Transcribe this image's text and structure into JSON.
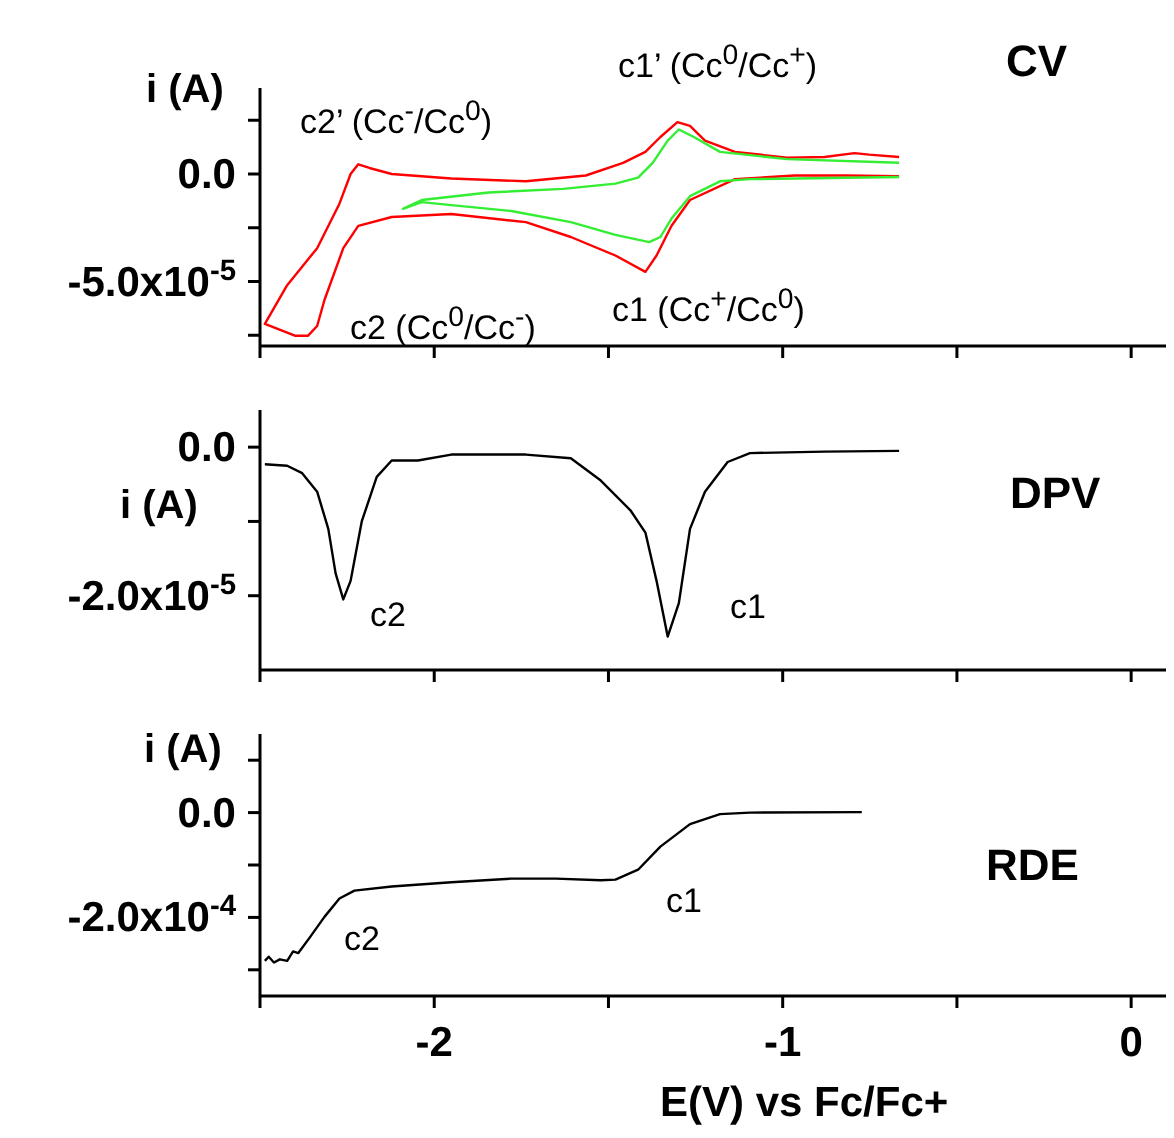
{
  "chart_data": [
    {
      "type": "line",
      "title": "CV",
      "ylabel": "i (A)",
      "tick_labels": "y",
      "annotations": [
        "c2’ (Cc$^{-}$/Cc$^{0}$)",
        "c1’ (Cc$^{0}$/Cc$^{+}$)",
        "c2 (Cc$^{0}$/Cc$^{-}$)",
        "c1 (Cc$^{+}$/Cc$^{0}$)"
      ],
      "xlim": [
        -2.5,
        0.1
      ],
      "xticks": [
        {
          "value": -2.5,
          "label": null
        },
        {
          "value": -2,
          "label": null
        },
        {
          "value": -1.5,
          "label": null
        },
        {
          "value": -1,
          "label": null
        },
        {
          "value": -0.5,
          "label": null
        },
        {
          "value": 0,
          "label": null
        }
      ],
      "ylim": [
        -8e-05,
        4e-05
      ],
      "yticks": [
        {
          "value": 2.5e-05,
          "label": null
        },
        {
          "value": 0,
          "label": "0.0"
        },
        {
          "value": -2.5e-05,
          "label": null
        },
        {
          "value": -5e-05,
          "label": "-5.0x10$^{-5}$"
        },
        {
          "value": -7.5e-05,
          "label": null
        }
      ],
      "series": [
        {
          "color": "#ff0000",
          "x": [
            -0.666,
            -0.816,
            -0.966,
            -1.137,
            -1.266,
            -1.319,
            -1.362,
            -1.394,
            -1.48,
            -1.608,
            -1.737,
            -1.951,
            -2.122,
            -2.218,
            -2.261,
            -2.315,
            -2.336,
            -2.362,
            -2.4,
            -2.486,
            -2.422,
            -2.336,
            -2.272,
            -2.24,
            -2.218,
            -2.186,
            -2.122,
            -1.951,
            -1.737,
            -1.565,
            -1.458,
            -1.394,
            -1.351,
            -1.302,
            -1.266,
            -1.223,
            -1.137,
            -0.987,
            -0.88,
            -0.794,
            -0.752,
            -0.666
          ],
          "values": [
            -1e-06,
            -7e-07,
            -7e-07,
            -2.4e-06,
            -1.21e-05,
            -2.41e-05,
            -3.79e-05,
            -4.55e-05,
            -3.79e-05,
            -2.93e-05,
            -2.24e-05,
            -1.86e-05,
            -2e-05,
            -2.41e-05,
            -3.45e-05,
            -5.86e-05,
            -7.07e-05,
            -7.52e-05,
            -7.52e-05,
            -6.97e-05,
            -5.17e-05,
            -3.45e-05,
            -1.38e-05,
            0,
            4.5e-06,
            2.8e-06,
            0,
            -2.1e-06,
            -3.4e-06,
            -7e-07,
            5.2e-06,
            1.03e-05,
            1.72e-05,
            2.41e-05,
            2.24e-05,
            1.55e-05,
            1.03e-05,
            7.6e-06,
            7.9e-06,
            9.7e-06,
            9e-06,
            7.9e-06
          ]
        },
        {
          "color": "#33ee33",
          "x": [
            -0.666,
            -1.094,
            -1.18,
            -1.266,
            -1.319,
            -1.351,
            -1.383,
            -1.48,
            -1.608,
            -1.779,
            -1.951,
            -2.036,
            -2.09,
            -2.036,
            -1.844,
            -1.63,
            -1.48,
            -1.415,
            -1.373,
            -1.33,
            -1.298,
            -1.255,
            -1.18,
            -0.987,
            -0.666
          ],
          "values": [
            -1.4e-06,
            -2.4e-06,
            -3.4e-06,
            -1.03e-05,
            -2.07e-05,
            -2.93e-05,
            -3.17e-05,
            -2.83e-05,
            -2.24e-05,
            -1.72e-05,
            -1.45e-05,
            -1.31e-05,
            -1.62e-05,
            -1.21e-05,
            -8.6e-06,
            -6.9e-06,
            -4.5e-06,
            -1.7e-06,
            5.2e-06,
            1.55e-05,
            2.07e-05,
            1.72e-05,
            1.03e-05,
            6.9e-06,
            5.2e-06
          ]
        }
      ]
    },
    {
      "type": "line",
      "title": "DPV",
      "ylabel": "i (A)",
      "tick_labels": "y",
      "annotations": [
        "c2",
        "c1"
      ],
      "xlim": [
        -2.5,
        0.1
      ],
      "xticks": [
        {
          "value": -2.5,
          "label": null
        },
        {
          "value": -2,
          "label": null
        },
        {
          "value": -1.5,
          "label": null
        },
        {
          "value": -1,
          "label": null
        },
        {
          "value": -0.5,
          "label": null
        },
        {
          "value": 0,
          "label": null
        }
      ],
      "ylim": [
        -3e-05,
        5e-06
      ],
      "yticks": [
        {
          "value": 0,
          "label": "0.0"
        },
        {
          "value": -1e-05,
          "label": null
        },
        {
          "value": -2e-05,
          "label": "-2.0x10$^{-5}$"
        }
      ],
      "series": [
        {
          "color": "#000000",
          "x": [
            -2.486,
            -2.422,
            -2.379,
            -2.336,
            -2.304,
            -2.283,
            -2.261,
            -2.24,
            -2.208,
            -2.165,
            -2.122,
            -2.047,
            -1.951,
            -1.737,
            -1.608,
            -1.522,
            -1.437,
            -1.394,
            -1.362,
            -1.33,
            -1.298,
            -1.266,
            -1.223,
            -1.158,
            -1.094,
            -0.88,
            -0.666
          ],
          "values": [
            -2.3e-06,
            -2.5e-06,
            -3.5e-06,
            -6e-06,
            -1.1e-05,
            -1.7e-05,
            -2.05e-05,
            -1.8e-05,
            -1e-05,
            -4e-06,
            -1.8e-06,
            -1.8e-06,
            -1e-06,
            -1e-06,
            -1.5e-06,
            -4.5e-06,
            -8.5e-06,
            -1.15e-05,
            -1.8e-05,
            -2.55e-05,
            -2.1e-05,
            -1.1e-05,
            -6e-06,
            -2e-06,
            -8e-07,
            -6e-07,
            -5e-07
          ]
        }
      ]
    },
    {
      "type": "line",
      "title": "RDE",
      "ylabel": "i (A)",
      "xlabel": "E(V) vs Fc/Fc+",
      "annotations": [
        "c2",
        "c1"
      ],
      "xlim": [
        -2.5,
        0.1
      ],
      "xticks": [
        {
          "value": -2.5,
          "label": null
        },
        -2,
        {
          "value": -1.5,
          "label": null
        },
        -1,
        {
          "value": -0.5,
          "label": null
        },
        0
      ],
      "ylim": [
        -0.00035,
        0.00015
      ],
      "yticks": [
        {
          "value": 0.0001,
          "label": null
        },
        {
          "value": 0,
          "label": "0.0"
        },
        {
          "value": -0.0001,
          "label": null
        },
        {
          "value": -0.0002,
          "label": "-2.0x10$^{-4}$"
        },
        {
          "value": -0.0003,
          "label": null
        }
      ],
      "series": [
        {
          "color": "#000000",
          "x": [
            -2.486,
            -2.475,
            -2.46,
            -2.443,
            -2.422,
            -2.405,
            -2.39,
            -2.358,
            -2.315,
            -2.272,
            -2.229,
            -2.122,
            -1.951,
            -1.779,
            -1.651,
            -1.522,
            -1.48,
            -1.415,
            -1.351,
            -1.266,
            -1.18,
            -1.094,
            -0.773
          ],
          "values": [
            -0.000283,
            -0.000275,
            -0.000286,
            -0.00028,
            -0.000283,
            -0.000265,
            -0.000268,
            -0.000239,
            -0.000199,
            -0.000164,
            -0.000149,
            -0.000141,
            -0.000133,
            -0.000126,
            -0.000126,
            -0.000129,
            -0.000128,
            -0.000109,
            -6.5e-05,
            -2.2e-05,
            -3e-06,
            0,
            1e-06
          ]
        }
      ]
    }
  ]
}
